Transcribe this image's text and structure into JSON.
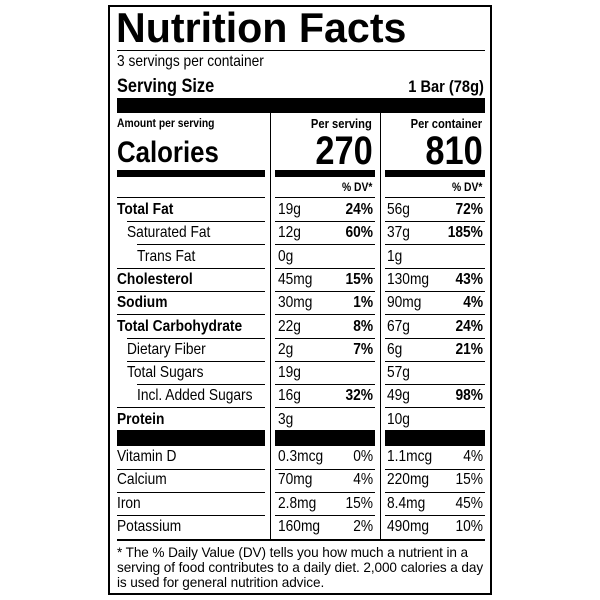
{
  "header": {
    "title": "Nutrition Facts",
    "servings": "3 servings per container",
    "serving_size_label": "Serving Size",
    "serving_size_value": "1 Bar (78g)"
  },
  "calories": {
    "amount_label": "Amount per serving",
    "label": "Calories",
    "per_serving_label": "Per serving",
    "per_serving": 270,
    "per_container_label": "Per container",
    "per_container": 810,
    "dv_label": "% DV*"
  },
  "table": {
    "rows": [
      [
        "Total Fat",
        "19g",
        "24%",
        "56g",
        "72%"
      ],
      [
        "Saturated Fat",
        "12g",
        "60%",
        "37g",
        "185%"
      ],
      [
        "Trans Fat",
        "0g",
        null,
        "1g",
        null
      ],
      [
        "Cholesterol",
        "45mg",
        "15%",
        "130mg",
        "43%"
      ],
      [
        "Sodium",
        "30mg",
        "1%",
        "90mg",
        "4%"
      ],
      [
        "Total Carbohydrate",
        "22g",
        "8%",
        "67g",
        "24%"
      ],
      [
        "Dietary Fiber",
        "2g",
        "7%",
        "6g",
        "21%"
      ],
      [
        "Total Sugars",
        "19g",
        null,
        "57g",
        null
      ],
      [
        "Incl. Added Sugars",
        "16g",
        "32%",
        "49g",
        "98%"
      ],
      [
        "Protein",
        "3g",
        null,
        "10g",
        null
      ]
    ],
    "vitamins": [
      [
        "Vitamin D",
        "0.3mcg",
        "0%",
        "1.1mcg",
        "4%"
      ],
      [
        "Calcium",
        "70mg",
        "4%",
        "220mg",
        "15%"
      ],
      [
        "Iron",
        "2.8mg",
        "15%",
        "8.4mg",
        "45%"
      ],
      [
        "Potassium",
        "160mg",
        "2%",
        "490mg",
        "10%"
      ]
    ]
  },
  "footnote": "* The % Daily Value (DV) tells you how much a nutrient in a serving of food contributes to a daily diet. 2,000 calories a day is used for general nutrition advice."
}
